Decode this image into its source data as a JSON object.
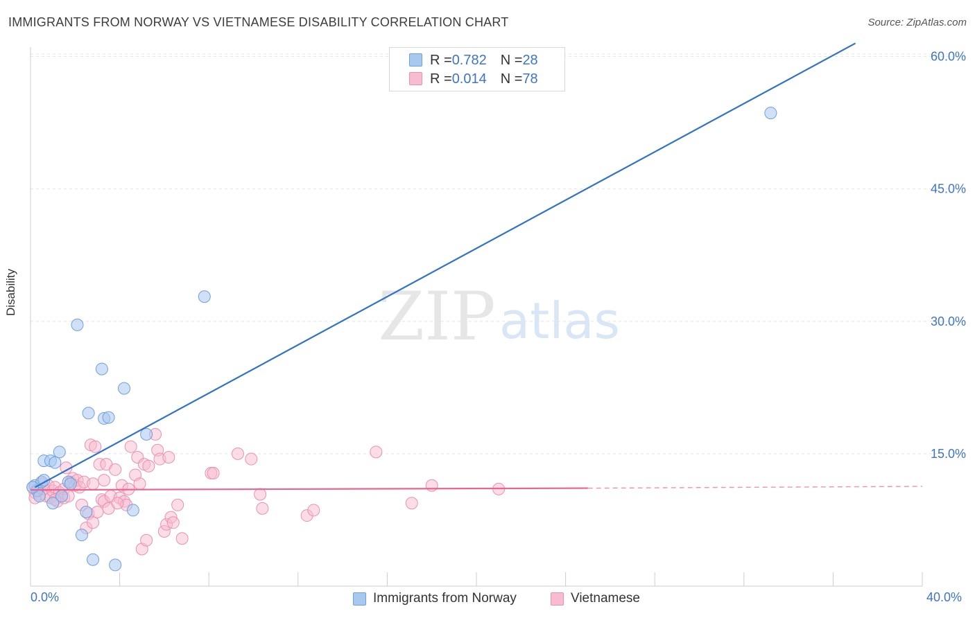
{
  "header": {
    "title": "IMMIGRANTS FROM NORWAY VS VIETNAMESE DISABILITY CORRELATION CHART",
    "source": "Source: ZipAtlas.com"
  },
  "watermark": {
    "zip": "ZIP",
    "atlas": "atlas"
  },
  "legend": {
    "norway": {
      "r_label": "R = ",
      "r_value": "0.782",
      "n_label": "N = ",
      "n_value": "28"
    },
    "vietnamese": {
      "r_label": "R = ",
      "r_value": "0.014",
      "n_label": "N = ",
      "n_value": "78"
    }
  },
  "colors": {
    "norway_fill": "#a9c8f0",
    "norway_stroke": "#6f9fdc",
    "norway_line": "#2e72c9",
    "viet_fill": "#f7bcd0",
    "viet_stroke": "#ec8fb0",
    "viet_line": "#e8658f",
    "tick_label": "#3d74c9",
    "grid": "#e4e4e4"
  },
  "chart_data": {
    "type": "scatter",
    "title": "IMMIGRANTS FROM NORWAY VS VIETNAMESE DISABILITY CORRELATION CHART",
    "xlabel": "",
    "ylabel": "Disability",
    "xlim": [
      0,
      40
    ],
    "ylim": [
      0,
      60
    ],
    "x_tick_labels": [
      "0.0%",
      "40.0%"
    ],
    "y_ticks": [
      {
        "value": 15,
        "label": "15.0%"
      },
      {
        "value": 30,
        "label": "30.0%"
      },
      {
        "value": 45,
        "label": "45.0%"
      },
      {
        "value": 60,
        "label": "60.0%"
      }
    ],
    "legend_position": "top-center",
    "series": [
      {
        "name": "Immigrants from Norway",
        "r": 0.782,
        "n": 28,
        "trend": {
          "x0": 0.2,
          "y0": 11.2,
          "x1": 37.0,
          "y1": 61.5
        },
        "points": [
          [
            0.2,
            11.4
          ],
          [
            0.3,
            10.8
          ],
          [
            0.4,
            10.2
          ],
          [
            0.5,
            11.8
          ],
          [
            0.6,
            12.0
          ],
          [
            0.6,
            14.2
          ],
          [
            0.9,
            14.2
          ],
          [
            1.1,
            14.0
          ],
          [
            1.3,
            15.2
          ],
          [
            1.0,
            9.4
          ],
          [
            1.4,
            10.2
          ],
          [
            1.7,
            11.8
          ],
          [
            1.8,
            11.6
          ],
          [
            2.1,
            29.6
          ],
          [
            2.3,
            5.8
          ],
          [
            2.5,
            8.4
          ],
          [
            2.6,
            19.6
          ],
          [
            2.8,
            3.0
          ],
          [
            3.2,
            24.6
          ],
          [
            3.3,
            19.0
          ],
          [
            3.5,
            19.1
          ],
          [
            3.8,
            2.4
          ],
          [
            4.2,
            22.4
          ],
          [
            4.6,
            8.6
          ],
          [
            5.2,
            17.2
          ],
          [
            7.8,
            32.8
          ],
          [
            33.2,
            53.6
          ],
          [
            0.1,
            11.2
          ]
        ]
      },
      {
        "name": "Vietnamese",
        "r": 0.014,
        "n": 78,
        "trend": {
          "x0": 0.0,
          "y0": 10.9,
          "x1": 25.0,
          "y1": 11.1
        },
        "trend_dashed": {
          "x0": 25.0,
          "y0": 11.1,
          "x1": 40.0,
          "y1": 11.3
        },
        "points": [
          [
            0.1,
            11.2
          ],
          [
            0.2,
            10.6
          ],
          [
            0.3,
            11.0
          ],
          [
            0.4,
            10.4
          ],
          [
            0.5,
            11.6
          ],
          [
            0.6,
            11.0
          ],
          [
            0.7,
            10.2
          ],
          [
            0.8,
            11.4
          ],
          [
            0.9,
            10.0
          ],
          [
            1.0,
            10.8
          ],
          [
            1.1,
            11.2
          ],
          [
            1.2,
            9.6
          ],
          [
            1.3,
            10.6
          ],
          [
            1.4,
            10.2
          ],
          [
            1.5,
            11.0
          ],
          [
            1.5,
            10.0
          ],
          [
            1.6,
            13.4
          ],
          [
            1.7,
            10.2
          ],
          [
            1.8,
            11.8
          ],
          [
            1.9,
            12.2
          ],
          [
            2.0,
            11.4
          ],
          [
            2.1,
            12.0
          ],
          [
            2.2,
            11.2
          ],
          [
            2.3,
            9.2
          ],
          [
            2.4,
            11.8
          ],
          [
            2.5,
            6.6
          ],
          [
            2.6,
            8.2
          ],
          [
            2.7,
            16.0
          ],
          [
            2.8,
            7.2
          ],
          [
            2.9,
            15.8
          ],
          [
            3.0,
            8.4
          ],
          [
            3.1,
            13.8
          ],
          [
            3.2,
            9.8
          ],
          [
            3.3,
            9.6
          ],
          [
            3.3,
            12.0
          ],
          [
            3.4,
            13.8
          ],
          [
            3.5,
            8.8
          ],
          [
            3.6,
            10.2
          ],
          [
            3.8,
            13.2
          ],
          [
            4.0,
            10.0
          ],
          [
            4.1,
            11.4
          ],
          [
            4.2,
            9.6
          ],
          [
            4.3,
            9.2
          ],
          [
            4.4,
            11.0
          ],
          [
            4.5,
            15.8
          ],
          [
            4.7,
            12.6
          ],
          [
            4.8,
            14.6
          ],
          [
            4.9,
            11.6
          ],
          [
            5.0,
            4.2
          ],
          [
            5.1,
            13.8
          ],
          [
            5.2,
            5.2
          ],
          [
            5.3,
            13.6
          ],
          [
            5.6,
            17.2
          ],
          [
            5.7,
            15.4
          ],
          [
            5.8,
            14.4
          ],
          [
            6.0,
            6.2
          ],
          [
            6.1,
            7.0
          ],
          [
            6.2,
            14.6
          ],
          [
            6.3,
            7.8
          ],
          [
            6.4,
            7.2
          ],
          [
            6.6,
            9.2
          ],
          [
            6.8,
            5.4
          ],
          [
            8.1,
            12.8
          ],
          [
            8.2,
            12.8
          ],
          [
            9.3,
            15.0
          ],
          [
            9.9,
            14.4
          ],
          [
            10.3,
            10.4
          ],
          [
            10.4,
            8.8
          ],
          [
            12.4,
            8.0
          ],
          [
            12.7,
            8.6
          ],
          [
            15.5,
            15.2
          ],
          [
            17.1,
            9.4
          ],
          [
            18.0,
            11.4
          ],
          [
            21.0,
            11.0
          ],
          [
            0.2,
            10.0
          ],
          [
            1.1,
            9.8
          ],
          [
            2.8,
            11.6
          ],
          [
            3.9,
            9.4
          ]
        ]
      }
    ]
  },
  "bottom_legend": {
    "norway_label": "Immigrants from Norway",
    "viet_label": "Vietnamese"
  }
}
